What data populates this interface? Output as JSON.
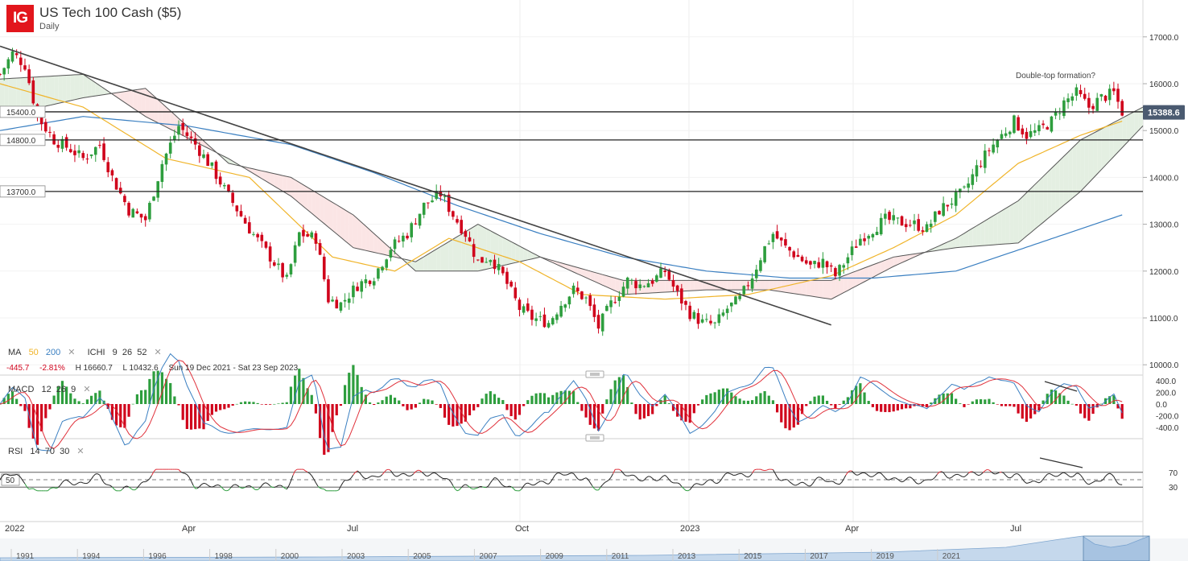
{
  "header": {
    "logo": "IG",
    "title": "US Tech 100 Cash ($5)",
    "subtitle": "Daily"
  },
  "colors": {
    "up": "#2e9e3e",
    "down": "#d0021b",
    "ma50": "#f0b429",
    "ma200": "#3a7fc1",
    "ichimoku": "#555555",
    "cloud_bull": "#e4efe2",
    "cloud_bear": "#fbe5e5",
    "price_tag": "#4a5a70",
    "macd": "#3a7fc1",
    "signal": "#e0303a",
    "rsi": "#222222",
    "rsi_overbought": "#e0303a",
    "rsi_oversold": "#2e9e3e"
  },
  "legend": {
    "ma_label": "MA",
    "ma_fast": "50",
    "ma_slow": "200",
    "ichi_label": "ICHI",
    "ichi_params": "9  26  52",
    "close_icon": "x-icon",
    "change": "-445.7",
    "change_pct": "-2.81%",
    "high": "H 16660.7",
    "low": "L 10432.6",
    "range": "Sun 19 Dec 2021 - Sat 23 Sep 2023"
  },
  "macd_label": {
    "name": "MACD",
    "params": "12  26  9"
  },
  "rsi_label": {
    "name": "RSI",
    "params": "14  70  30"
  },
  "price_axis": [
    "17000.0",
    "16000.0",
    "15000.0",
    "14000.0",
    "13000.0",
    "12000.0",
    "11000.0",
    "10000.0"
  ],
  "macd_axis": [
    "400.0",
    "200.0",
    "0.0",
    "-200.0",
    "-400.0"
  ],
  "rsi_axis": [
    "70",
    "30"
  ],
  "rsi_mid_label": "50",
  "levels": [
    {
      "label": "15400.0",
      "value": 15400
    },
    {
      "label": "14800.0",
      "value": 14800
    },
    {
      "label": "13700.0",
      "value": 13700
    }
  ],
  "current_price": "15388.6",
  "annotation": "Double-top formation?",
  "time_axis": [
    {
      "label": "2022",
      "x": 6
    },
    {
      "label": "Apr",
      "x": 226
    },
    {
      "label": "Jul",
      "x": 431
    },
    {
      "label": "Oct",
      "x": 640
    },
    {
      "label": "2023",
      "x": 845
    },
    {
      "label": "Apr",
      "x": 1050
    },
    {
      "label": "Jul",
      "x": 1255
    }
  ],
  "nav_years": [
    "1991",
    "1994",
    "1996",
    "1998",
    "2000",
    "2003",
    "2005",
    "2007",
    "2009",
    "2011",
    "2013",
    "2015",
    "2017",
    "2019",
    "2021"
  ],
  "chart_data": {
    "type": "candlestick",
    "period": {
      "start": "2021-12-19",
      "end": "2023-09-23"
    },
    "ylim": [
      10000,
      17200
    ],
    "price_path": [
      {
        "t": 0,
        "v": 16200
      },
      {
        "t": 3,
        "v": 16650
      },
      {
        "t": 6,
        "v": 16400
      },
      {
        "t": 9,
        "v": 15300
      },
      {
        "t": 13,
        "v": 14800
      },
      {
        "t": 17,
        "v": 14600
      },
      {
        "t": 20,
        "v": 14400
      },
      {
        "t": 24,
        "v": 14700
      },
      {
        "t": 27,
        "v": 14000
      },
      {
        "t": 31,
        "v": 13300
      },
      {
        "t": 35,
        "v": 13100
      },
      {
        "t": 39,
        "v": 14300
      },
      {
        "t": 43,
        "v": 15100
      },
      {
        "t": 47,
        "v": 14700
      },
      {
        "t": 51,
        "v": 14200
      },
      {
        "t": 55,
        "v": 13600
      },
      {
        "t": 60,
        "v": 12900
      },
      {
        "t": 65,
        "v": 12300
      },
      {
        "t": 69,
        "v": 11800
      },
      {
        "t": 72,
        "v": 12800
      },
      {
        "t": 76,
        "v": 12700
      },
      {
        "t": 79,
        "v": 11400
      },
      {
        "t": 82,
        "v": 11300
      },
      {
        "t": 86,
        "v": 11700
      },
      {
        "t": 90,
        "v": 11900
      },
      {
        "t": 94,
        "v": 12500
      },
      {
        "t": 98,
        "v": 12800
      },
      {
        "t": 102,
        "v": 13400
      },
      {
        "t": 106,
        "v": 13650
      },
      {
        "t": 109,
        "v": 13200
      },
      {
        "t": 112,
        "v": 12800
      },
      {
        "t": 115,
        "v": 12200
      },
      {
        "t": 118,
        "v": 12300
      },
      {
        "t": 121,
        "v": 11900
      },
      {
        "t": 125,
        "v": 11200
      },
      {
        "t": 128,
        "v": 11000
      },
      {
        "t": 132,
        "v": 10900
      },
      {
        "t": 135,
        "v": 11300
      },
      {
        "t": 138,
        "v": 11600
      },
      {
        "t": 141,
        "v": 11400
      },
      {
        "t": 144,
        "v": 10800
      },
      {
        "t": 147,
        "v": 11300
      },
      {
        "t": 151,
        "v": 11800
      },
      {
        "t": 154,
        "v": 11700
      },
      {
        "t": 157,
        "v": 11800
      },
      {
        "t": 160,
        "v": 12000
      },
      {
        "t": 163,
        "v": 11500
      },
      {
        "t": 166,
        "v": 11100
      },
      {
        "t": 169,
        "v": 10900
      },
      {
        "t": 172,
        "v": 10850
      },
      {
        "t": 175,
        "v": 11200
      },
      {
        "t": 178,
        "v": 11400
      },
      {
        "t": 181,
        "v": 11900
      },
      {
        "t": 184,
        "v": 12500
      },
      {
        "t": 186,
        "v": 12800
      },
      {
        "t": 189,
        "v": 12500
      },
      {
        "t": 192,
        "v": 12300
      },
      {
        "t": 195,
        "v": 12100
      },
      {
        "t": 198,
        "v": 12200
      },
      {
        "t": 201,
        "v": 11900
      },
      {
        "t": 204,
        "v": 12300
      },
      {
        "t": 207,
        "v": 12700
      },
      {
        "t": 210,
        "v": 12900
      },
      {
        "t": 213,
        "v": 13100
      },
      {
        "t": 216,
        "v": 13050
      },
      {
        "t": 220,
        "v": 13000
      },
      {
        "t": 223,
        "v": 12900
      },
      {
        "t": 226,
        "v": 13300
      },
      {
        "t": 229,
        "v": 13500
      },
      {
        "t": 232,
        "v": 13700
      },
      {
        "t": 235,
        "v": 14200
      },
      {
        "t": 238,
        "v": 14600
      },
      {
        "t": 241,
        "v": 14900
      },
      {
        "t": 244,
        "v": 15200
      },
      {
        "t": 247,
        "v": 14900
      },
      {
        "t": 250,
        "v": 15000
      },
      {
        "t": 253,
        "v": 15200
      },
      {
        "t": 256,
        "v": 15600
      },
      {
        "t": 259,
        "v": 15800
      },
      {
        "t": 262,
        "v": 15500
      },
      {
        "t": 265,
        "v": 15700
      },
      {
        "t": 268,
        "v": 15800
      },
      {
        "t": 270,
        "v": 15400
      }
    ],
    "trendline": {
      "start": {
        "t": 0,
        "v": 16800
      },
      "end": {
        "t": 200,
        "v": 10850
      }
    },
    "ma50_path": [
      {
        "t": 0,
        "v": 16000
      },
      {
        "t": 20,
        "v": 15500
      },
      {
        "t": 40,
        "v": 14400
      },
      {
        "t": 60,
        "v": 14000
      },
      {
        "t": 80,
        "v": 12300
      },
      {
        "t": 95,
        "v": 12000
      },
      {
        "t": 108,
        "v": 12700
      },
      {
        "t": 125,
        "v": 12200
      },
      {
        "t": 140,
        "v": 11500
      },
      {
        "t": 160,
        "v": 11400
      },
      {
        "t": 180,
        "v": 11500
      },
      {
        "t": 200,
        "v": 11900
      },
      {
        "t": 215,
        "v": 12500
      },
      {
        "t": 230,
        "v": 13200
      },
      {
        "t": 245,
        "v": 14300
      },
      {
        "t": 260,
        "v": 14900
      },
      {
        "t": 270,
        "v": 15200
      }
    ],
    "ma200_path": [
      {
        "t": 0,
        "v": 15000
      },
      {
        "t": 20,
        "v": 15300
      },
      {
        "t": 45,
        "v": 15100
      },
      {
        "t": 70,
        "v": 14700
      },
      {
        "t": 90,
        "v": 14100
      },
      {
        "t": 110,
        "v": 13400
      },
      {
        "t": 130,
        "v": 12800
      },
      {
        "t": 150,
        "v": 12300
      },
      {
        "t": 170,
        "v": 12000
      },
      {
        "t": 190,
        "v": 11850
      },
      {
        "t": 210,
        "v": 11850
      },
      {
        "t": 230,
        "v": 12000
      },
      {
        "t": 250,
        "v": 12600
      },
      {
        "t": 270,
        "v": 13200
      }
    ],
    "cloud_a": [
      {
        "t": 0,
        "v": 16100
      },
      {
        "t": 20,
        "v": 16200
      },
      {
        "t": 35,
        "v": 15300
      },
      {
        "t": 55,
        "v": 14400
      },
      {
        "t": 70,
        "v": 13600
      },
      {
        "t": 85,
        "v": 12500
      },
      {
        "t": 100,
        "v": 12200
      },
      {
        "t": 115,
        "v": 13000
      },
      {
        "t": 130,
        "v": 12300
      },
      {
        "t": 150,
        "v": 11500
      },
      {
        "t": 170,
        "v": 11600
      },
      {
        "t": 185,
        "v": 11600
      },
      {
        "t": 200,
        "v": 11400
      },
      {
        "t": 215,
        "v": 12100
      },
      {
        "t": 230,
        "v": 12700
      },
      {
        "t": 245,
        "v": 13500
      },
      {
        "t": 260,
        "v": 14800
      },
      {
        "t": 275,
        "v": 15500
      }
    ],
    "cloud_b": [
      {
        "t": 0,
        "v": 15300
      },
      {
        "t": 20,
        "v": 15700
      },
      {
        "t": 35,
        "v": 15900
      },
      {
        "t": 55,
        "v": 14300
      },
      {
        "t": 70,
        "v": 14000
      },
      {
        "t": 85,
        "v": 13200
      },
      {
        "t": 100,
        "v": 12000
      },
      {
        "t": 115,
        "v": 12000
      },
      {
        "t": 130,
        "v": 12300
      },
      {
        "t": 150,
        "v": 11800
      },
      {
        "t": 170,
        "v": 11800
      },
      {
        "t": 185,
        "v": 11800
      },
      {
        "t": 200,
        "v": 11800
      },
      {
        "t": 215,
        "v": 12300
      },
      {
        "t": 230,
        "v": 12500
      },
      {
        "t": 245,
        "v": 12600
      },
      {
        "t": 260,
        "v": 13700
      },
      {
        "t": 275,
        "v": 15100
      }
    ],
    "macd": {
      "ylim": [
        -500,
        500
      ]
    },
    "rsi": {
      "ylim": [
        10,
        90
      ],
      "overbought": 70,
      "oversold": 30
    }
  }
}
